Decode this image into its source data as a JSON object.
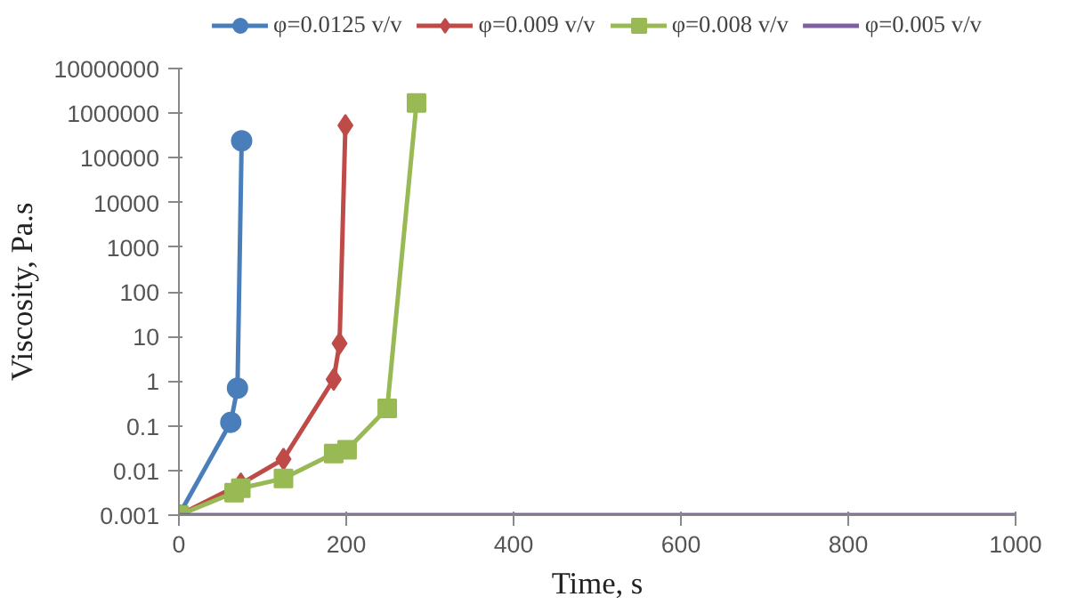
{
  "chart_data": {
    "type": "line",
    "xlabel": "Time, s",
    "ylabel": "Viscosity, Pa.s",
    "log": "y",
    "xlim": [
      0,
      1000
    ],
    "xticks": [
      0,
      200,
      400,
      600,
      800,
      1000
    ],
    "ylim": [
      0.001,
      10000000
    ],
    "yticks": [
      0.001,
      0.01,
      0.1,
      1,
      10,
      100,
      1000,
      10000,
      100000,
      1000000,
      10000000
    ],
    "grid": false,
    "legend": "top",
    "line_style": "solid",
    "series": [
      {
        "name": "φ=0.0125 v/v",
        "color": "#4a7ebb",
        "marker": "circle",
        "x": [
          0,
          62,
          70,
          75
        ],
        "values": [
          0.001,
          0.12,
          0.7,
          240000
        ]
      },
      {
        "name": "φ=0.009 v/v",
        "color": "#be4b48",
        "marker": "diamond",
        "x": [
          0,
          74,
          125,
          185,
          192,
          199
        ],
        "values": [
          0.001,
          0.005,
          0.018,
          1.1,
          7,
          530000
        ]
      },
      {
        "name": "φ=0.008 v/v",
        "color": "#98b954",
        "marker": "square",
        "x": [
          0,
          66,
          74,
          125,
          185,
          201,
          249,
          284
        ],
        "values": [
          0.001,
          0.0032,
          0.004,
          0.0066,
          0.024,
          0.029,
          0.245,
          1700000
        ]
      },
      {
        "name": "φ=0.005 v/v",
        "color": "#7d60a0",
        "marker": "none",
        "x": [
          0,
          77,
          130,
          193,
          253,
          292,
          315,
          377,
          438,
          495,
          557,
          663,
          683,
          746,
          808,
          864,
          924,
          990,
          1000
        ],
        "values": [
          0.001,
          0.001,
          0.001,
          0.001,
          0.001,
          0.001,
          0.001,
          0.001,
          0.001,
          0.001,
          0.001,
          0.001,
          0.001,
          0.001,
          0.001,
          0.001,
          0.001,
          0.001,
          0.001
        ]
      }
    ]
  }
}
